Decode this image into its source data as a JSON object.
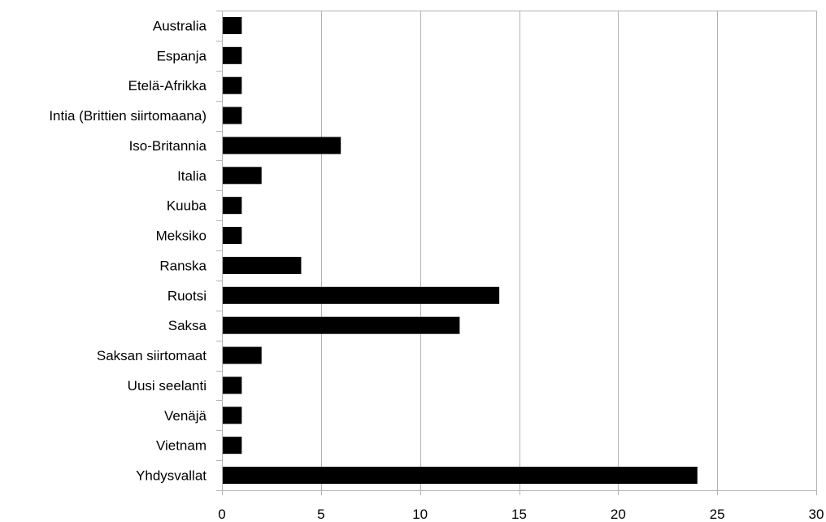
{
  "chart_data": {
    "type": "bar",
    "orientation": "horizontal",
    "title": "",
    "xlabel": "",
    "ylabel": "",
    "categories": [
      "Australia",
      "Espanja",
      "Etelä-Afrikka",
      "Intia (Brittien siirtomaana)",
      "Iso-Britannia",
      "Italia",
      "Kuuba",
      "Meksiko",
      "Ranska",
      "Ruotsi",
      "Saksa",
      "Saksan siirtomaat",
      "Uusi seelanti",
      "Venäjä",
      "Vietnam",
      "Yhdysvallat"
    ],
    "values": [
      1,
      1,
      1,
      1,
      6,
      2,
      1,
      1,
      4,
      14,
      12,
      2,
      1,
      1,
      1,
      24
    ],
    "xlim": [
      0,
      30
    ],
    "xticks": [
      "0",
      "5",
      "10",
      "15",
      "20",
      "25",
      "30"
    ],
    "grid": "vertical",
    "legend": "none",
    "colors": {
      "bar": "#000000",
      "grid": "#b3b3b3",
      "axis": "#b3b3b3",
      "background": "#ffffff"
    }
  }
}
